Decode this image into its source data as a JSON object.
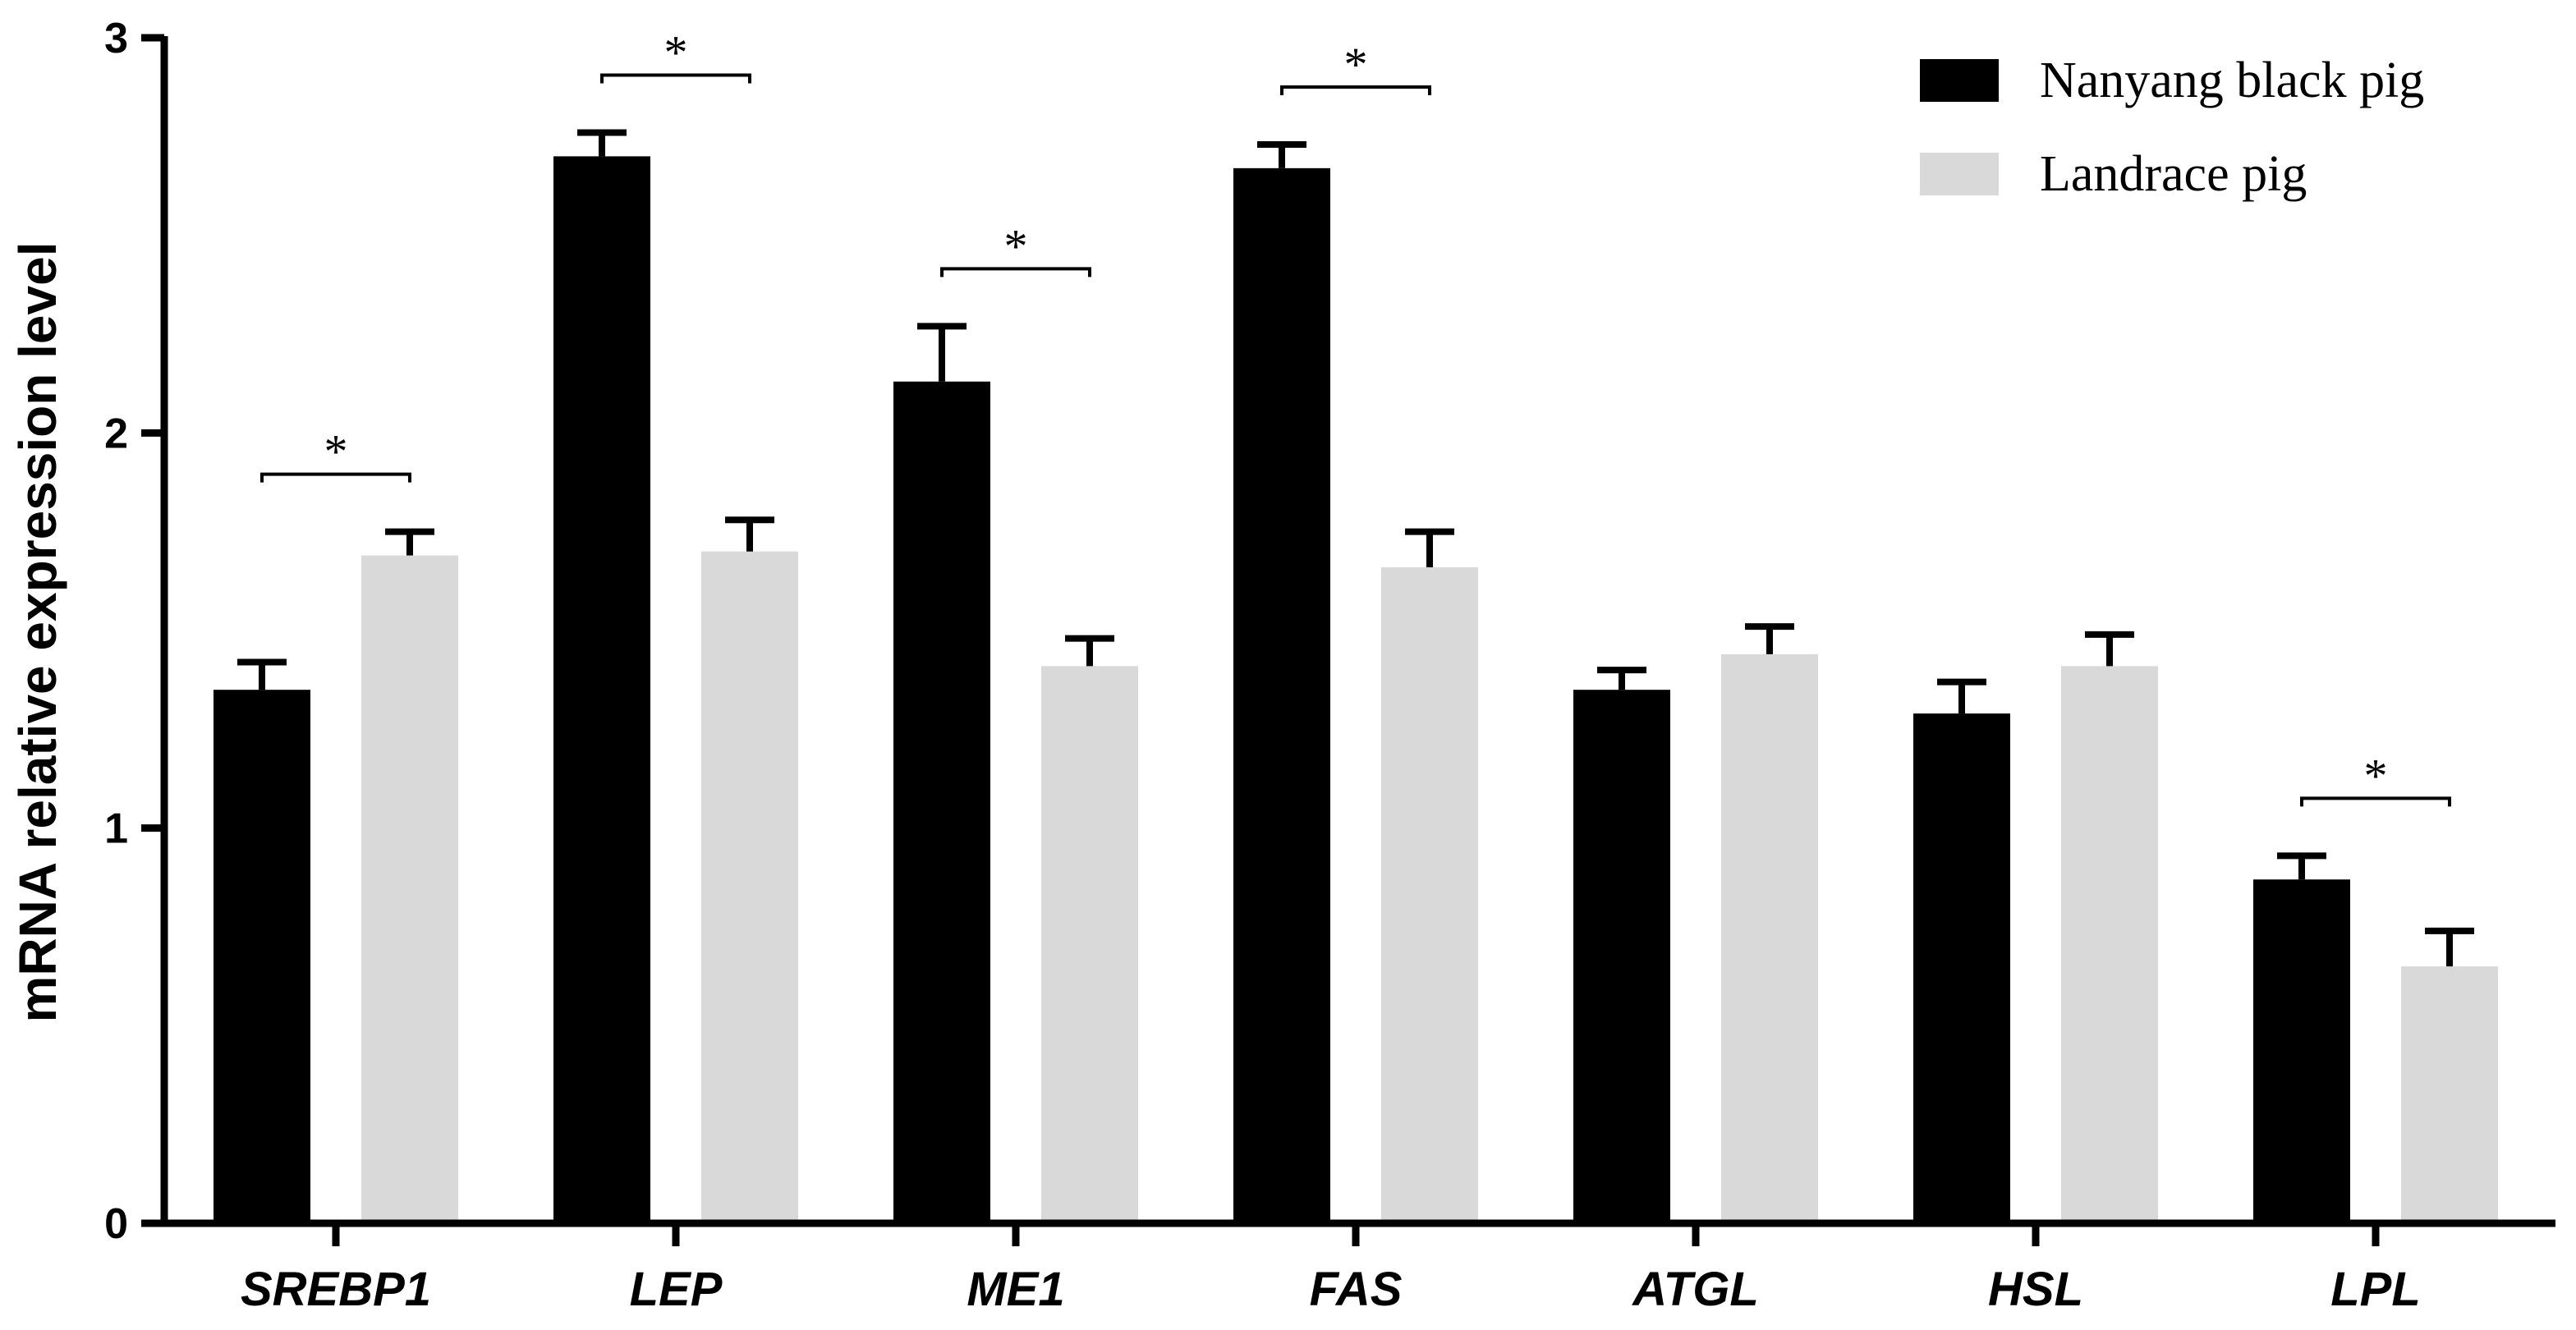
{
  "chart_data": {
    "type": "bar",
    "title": "",
    "xlabel": "",
    "ylabel": "mRNA relative expression level",
    "ylim": [
      0,
      3
    ],
    "yticks": [
      "0",
      "1",
      "2",
      "3"
    ],
    "grid": false,
    "legend_position": "top-right",
    "categories": [
      "SREBP1",
      "LEP",
      "ME1",
      "FAS",
      "ATGL",
      "HSL",
      "LPL"
    ],
    "series": [
      {
        "name": "Nanyang black pig",
        "color": "#000000",
        "values": [
          1.35,
          2.7,
          2.13,
          2.67,
          1.35,
          1.29,
          0.87
        ],
        "errors": [
          0.07,
          0.06,
          0.14,
          0.06,
          0.05,
          0.08,
          0.06
        ]
      },
      {
        "name": "Landrace pig",
        "color": "#d9d9d9",
        "values": [
          1.69,
          1.7,
          1.41,
          1.66,
          1.44,
          1.41,
          0.65
        ],
        "errors": [
          0.06,
          0.08,
          0.07,
          0.09,
          0.07,
          0.08,
          0.09
        ]
      }
    ],
    "significance": [
      {
        "category": "SREBP1",
        "label": "*"
      },
      {
        "category": "LEP",
        "label": "*"
      },
      {
        "category": "ME1",
        "label": "*"
      },
      {
        "category": "FAS",
        "label": "*"
      },
      {
        "category": "LPL",
        "label": "*"
      }
    ]
  }
}
